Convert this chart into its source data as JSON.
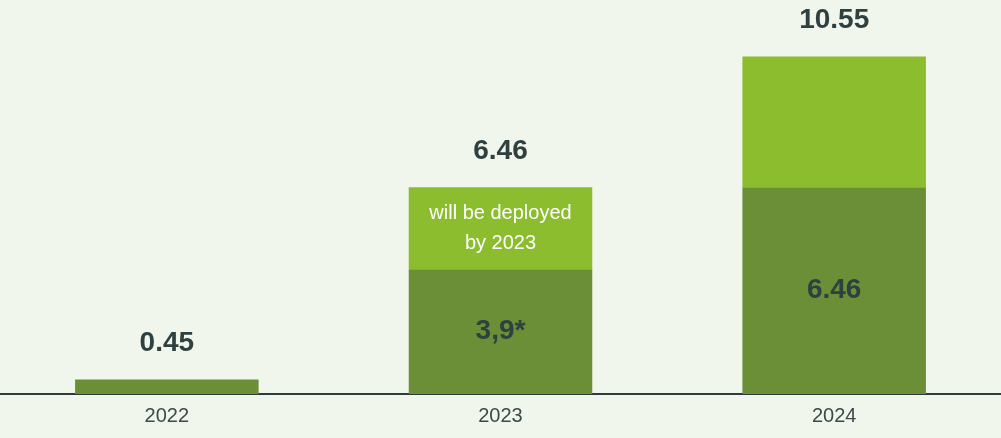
{
  "chart_data": {
    "type": "bar",
    "stacked": true,
    "categories": [
      "2022",
      "2023",
      "2024"
    ],
    "series": [
      {
        "color": "#6a8f36",
        "values": [
          0.45,
          3.9,
          6.46
        ],
        "value_labels": [
          null,
          "3,9*",
          "6.46"
        ]
      },
      {
        "color": "#8bbd2e",
        "values": [
          0,
          2.56,
          4.09
        ],
        "value_labels": [
          null,
          "will be deployed by 2023",
          null
        ]
      }
    ],
    "totals": [
      "0.45",
      "6.46",
      "10.55"
    ],
    "grid": false,
    "legend": false
  }
}
